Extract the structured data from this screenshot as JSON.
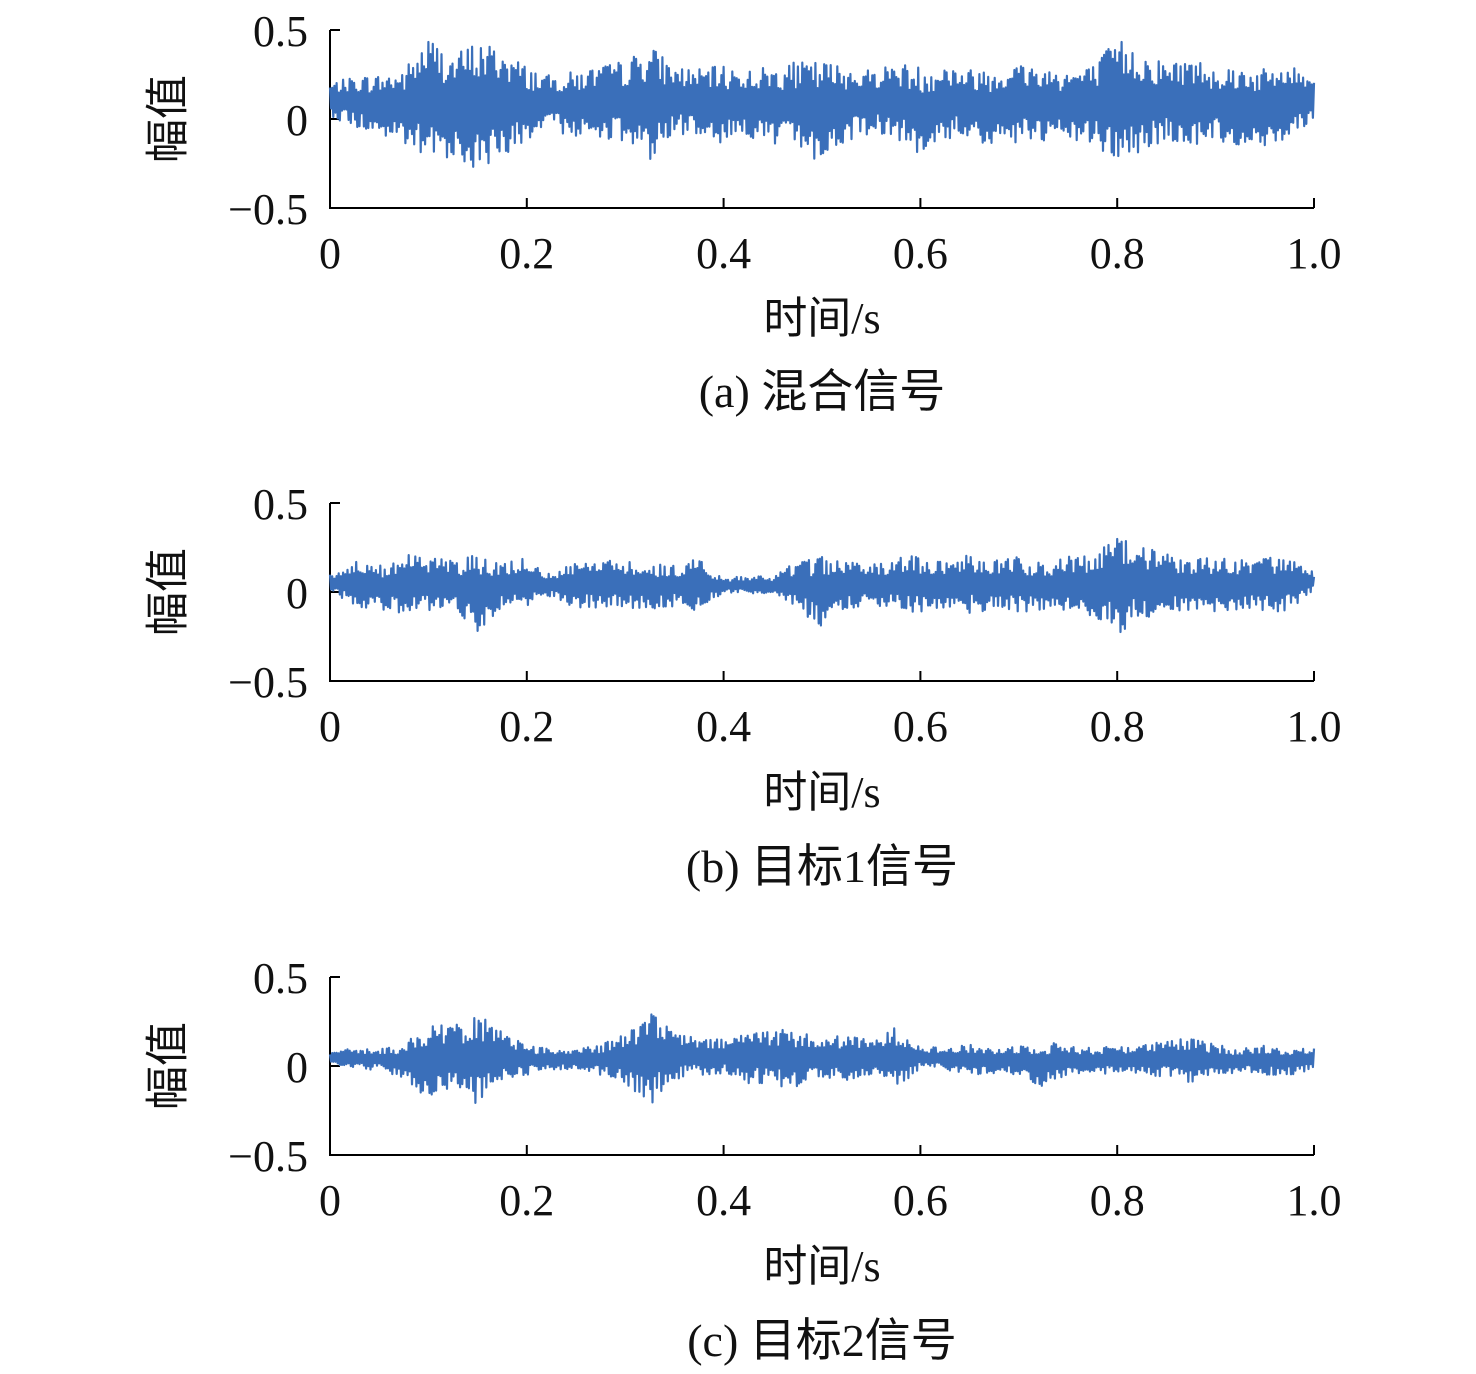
{
  "chart_data": [
    {
      "type": "line",
      "panel": "a",
      "caption": "(a) 混合信号",
      "xlabel": "时间/s",
      "ylabel": "幅值",
      "xlim": [
        0,
        1.0
      ],
      "ylim": [
        -0.5,
        0.5
      ],
      "xticks": [
        "0",
        "0.2",
        "0.4",
        "0.6",
        "0.8",
        "1.0"
      ],
      "yticks": [
        "0.5",
        "0",
        "−0.5"
      ],
      "color": "#3a6fba",
      "series": [
        {
          "x": [
            0,
            0.025,
            0.05,
            0.075,
            0.1,
            0.125,
            0.15,
            0.175,
            0.2,
            0.225,
            0.25,
            0.275,
            0.3,
            0.325,
            0.35,
            0.375,
            0.4,
            0.425,
            0.45,
            0.475,
            0.5,
            0.525,
            0.55,
            0.575,
            0.6,
            0.625,
            0.65,
            0.675,
            0.7,
            0.725,
            0.75,
            0.775,
            0.8,
            0.825,
            0.85,
            0.875,
            0.9,
            0.925,
            0.95,
            0.975,
            1.0
          ],
          "upper": [
            0.2,
            0.24,
            0.25,
            0.28,
            0.47,
            0.36,
            0.45,
            0.4,
            0.3,
            0.24,
            0.27,
            0.3,
            0.33,
            0.42,
            0.3,
            0.28,
            0.3,
            0.28,
            0.3,
            0.32,
            0.33,
            0.3,
            0.28,
            0.32,
            0.3,
            0.31,
            0.28,
            0.3,
            0.32,
            0.3,
            0.28,
            0.3,
            0.46,
            0.38,
            0.32,
            0.35,
            0.3,
            0.3,
            0.28,
            0.3,
            0.25
          ],
          "lower": [
            0.02,
            -0.05,
            -0.1,
            -0.15,
            -0.27,
            -0.2,
            -0.32,
            -0.2,
            -0.15,
            -0.05,
            -0.12,
            -0.1,
            -0.15,
            -0.23,
            -0.1,
            -0.08,
            -0.14,
            -0.1,
            -0.16,
            -0.15,
            -0.26,
            -0.13,
            -0.08,
            -0.1,
            -0.23,
            -0.12,
            -0.1,
            -0.18,
            -0.13,
            -0.15,
            -0.12,
            -0.15,
            -0.25,
            -0.2,
            -0.12,
            -0.16,
            -0.13,
            -0.15,
            -0.16,
            -0.1,
            0.0
          ]
        }
      ]
    },
    {
      "type": "line",
      "panel": "b",
      "caption": "(b) 目标1信号",
      "xlabel": "时间/s",
      "ylabel": "幅值",
      "xlim": [
        0,
        1.0
      ],
      "ylim": [
        -0.5,
        0.5
      ],
      "xticks": [
        "0",
        "0.2",
        "0.4",
        "0.6",
        "0.8",
        "1.0"
      ],
      "yticks": [
        "0.5",
        "0",
        "−0.5"
      ],
      "color": "#3a6fba",
      "series": [
        {
          "x": [
            0,
            0.025,
            0.05,
            0.075,
            0.1,
            0.125,
            0.15,
            0.175,
            0.2,
            0.225,
            0.25,
            0.275,
            0.3,
            0.325,
            0.35,
            0.375,
            0.4,
            0.425,
            0.45,
            0.475,
            0.5,
            0.525,
            0.55,
            0.575,
            0.6,
            0.625,
            0.65,
            0.675,
            0.7,
            0.725,
            0.75,
            0.775,
            0.8,
            0.825,
            0.85,
            0.875,
            0.9,
            0.925,
            0.95,
            0.975,
            1.0
          ],
          "upper": [
            0.1,
            0.17,
            0.15,
            0.22,
            0.2,
            0.18,
            0.22,
            0.16,
            0.2,
            0.1,
            0.18,
            0.2,
            0.18,
            0.16,
            0.15,
            0.2,
            0.07,
            0.1,
            0.08,
            0.18,
            0.2,
            0.18,
            0.15,
            0.2,
            0.2,
            0.18,
            0.22,
            0.18,
            0.2,
            0.16,
            0.2,
            0.22,
            0.32,
            0.25,
            0.22,
            0.18,
            0.2,
            0.18,
            0.2,
            0.18,
            0.12
          ],
          "lower": [
            0.0,
            -0.08,
            -0.1,
            -0.12,
            -0.12,
            -0.1,
            -0.22,
            -0.1,
            -0.1,
            -0.02,
            -0.1,
            -0.1,
            -0.1,
            -0.1,
            -0.08,
            -0.12,
            0.0,
            -0.02,
            0.0,
            -0.1,
            -0.2,
            -0.1,
            -0.08,
            -0.1,
            -0.12,
            -0.1,
            -0.12,
            -0.1,
            -0.12,
            -0.1,
            -0.12,
            -0.15,
            -0.24,
            -0.15,
            -0.12,
            -0.1,
            -0.12,
            -0.1,
            -0.12,
            -0.1,
            0.0
          ]
        }
      ]
    },
    {
      "type": "line",
      "panel": "c",
      "caption": "(c) 目标2信号",
      "xlabel": "时间/s",
      "ylabel": "幅值",
      "xlim": [
        0,
        1.0
      ],
      "ylim": [
        -0.5,
        0.5
      ],
      "xticks": [
        "0",
        "0.2",
        "0.4",
        "0.6",
        "0.8",
        "1.0"
      ],
      "yticks": [
        "0.5",
        "0",
        "−0.5"
      ],
      "color": "#3a6fba",
      "series": [
        {
          "x": [
            0,
            0.025,
            0.05,
            0.075,
            0.1,
            0.125,
            0.15,
            0.175,
            0.2,
            0.225,
            0.25,
            0.275,
            0.3,
            0.325,
            0.35,
            0.375,
            0.4,
            0.425,
            0.45,
            0.475,
            0.5,
            0.525,
            0.55,
            0.575,
            0.6,
            0.625,
            0.65,
            0.675,
            0.7,
            0.725,
            0.75,
            0.775,
            0.8,
            0.825,
            0.85,
            0.875,
            0.9,
            0.925,
            0.95,
            0.975,
            1.0
          ],
          "upper": [
            0.08,
            0.1,
            0.1,
            0.12,
            0.24,
            0.22,
            0.3,
            0.2,
            0.12,
            0.1,
            0.1,
            0.12,
            0.18,
            0.3,
            0.2,
            0.15,
            0.15,
            0.2,
            0.22,
            0.2,
            0.15,
            0.18,
            0.14,
            0.22,
            0.12,
            0.1,
            0.12,
            0.1,
            0.12,
            0.14,
            0.12,
            0.1,
            0.12,
            0.12,
            0.14,
            0.16,
            0.12,
            0.1,
            0.12,
            0.1,
            0.1
          ],
          "lower": [
            0.02,
            -0.02,
            -0.02,
            -0.08,
            -0.18,
            -0.12,
            -0.22,
            -0.08,
            -0.05,
            -0.02,
            -0.02,
            -0.05,
            -0.1,
            -0.22,
            -0.08,
            -0.05,
            -0.05,
            -0.1,
            -0.12,
            -0.12,
            -0.06,
            -0.08,
            -0.05,
            -0.12,
            -0.02,
            -0.02,
            -0.05,
            -0.04,
            -0.05,
            -0.12,
            -0.05,
            -0.04,
            -0.05,
            -0.05,
            -0.06,
            -0.1,
            -0.05,
            -0.04,
            -0.05,
            -0.05,
            -0.02
          ]
        }
      ]
    }
  ]
}
